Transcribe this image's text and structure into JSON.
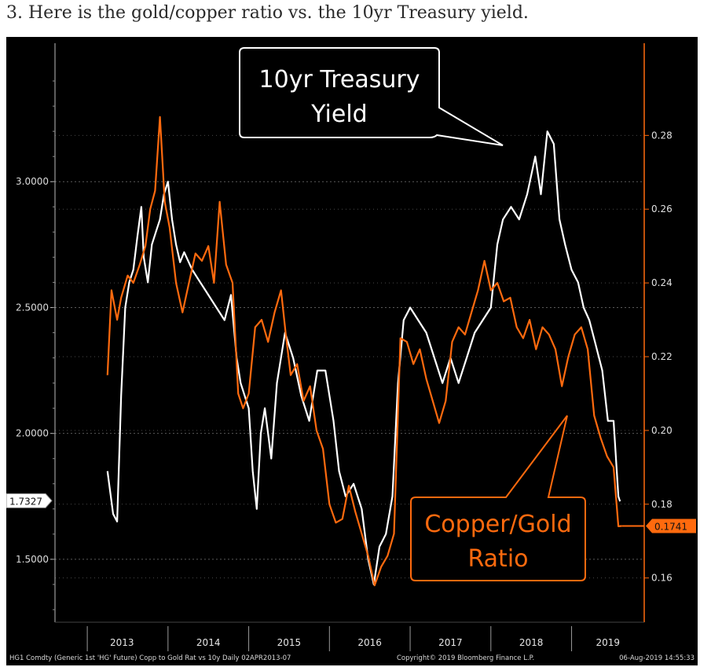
{
  "caption": "3. Here is the gold/copper ratio vs. the 10yr Treasury yield.",
  "chart_data": {
    "type": "line",
    "x_categories": [
      "2013",
      "2014",
      "2015",
      "2016",
      "2017",
      "2018",
      "2019"
    ],
    "left_axis": {
      "ticks": [
        {
          "value": 3.0,
          "label": "3.0000"
        },
        {
          "value": 2.5,
          "label": "2.5000"
        },
        {
          "value": 2.0,
          "label": "2.0000"
        },
        {
          "value": 1.5,
          "label": "1.5000"
        }
      ],
      "range": [
        1.25,
        3.55
      ],
      "last_value": 1.7327,
      "last_label": "1.7327"
    },
    "right_axis": {
      "ticks": [
        {
          "value": 0.28,
          "label": "0.28"
        },
        {
          "value": 0.26,
          "label": "0.26"
        },
        {
          "value": 0.24,
          "label": "0.24"
        },
        {
          "value": 0.22,
          "label": "0.22"
        },
        {
          "value": 0.2,
          "label": "0.20"
        },
        {
          "value": 0.18,
          "label": "0.18"
        },
        {
          "value": 0.16,
          "label": "0.16"
        }
      ],
      "range": [
        0.148,
        0.305
      ],
      "last_value": 0.1741,
      "last_label": "0.1741"
    },
    "series": [
      {
        "name": "10yr Treasury Yield",
        "axis": "left",
        "color": "#ffffff",
        "points": [
          [
            2013.25,
            1.85
          ],
          [
            2013.32,
            1.68
          ],
          [
            2013.37,
            1.65
          ],
          [
            2013.42,
            2.15
          ],
          [
            2013.47,
            2.5
          ],
          [
            2013.52,
            2.6
          ],
          [
            2013.57,
            2.65
          ],
          [
            2013.62,
            2.78
          ],
          [
            2013.67,
            2.9
          ],
          [
            2013.7,
            2.7
          ],
          [
            2013.75,
            2.6
          ],
          [
            2013.8,
            2.75
          ],
          [
            2013.85,
            2.8
          ],
          [
            2013.9,
            2.85
          ],
          [
            2013.95,
            2.95
          ],
          [
            2014.0,
            3.0
          ],
          [
            2014.05,
            2.85
          ],
          [
            2014.1,
            2.75
          ],
          [
            2014.15,
            2.68
          ],
          [
            2014.2,
            2.72
          ],
          [
            2014.3,
            2.65
          ],
          [
            2014.4,
            2.6
          ],
          [
            2014.5,
            2.55
          ],
          [
            2014.6,
            2.5
          ],
          [
            2014.7,
            2.45
          ],
          [
            2014.78,
            2.55
          ],
          [
            2014.85,
            2.3
          ],
          [
            2014.9,
            2.2
          ],
          [
            2014.95,
            2.15
          ],
          [
            2015.0,
            2.1
          ],
          [
            2015.05,
            1.85
          ],
          [
            2015.1,
            1.7
          ],
          [
            2015.15,
            2.0
          ],
          [
            2015.2,
            2.1
          ],
          [
            2015.28,
            1.9
          ],
          [
            2015.35,
            2.2
          ],
          [
            2015.45,
            2.4
          ],
          [
            2015.55,
            2.3
          ],
          [
            2015.65,
            2.15
          ],
          [
            2015.75,
            2.05
          ],
          [
            2015.85,
            2.25
          ],
          [
            2015.95,
            2.25
          ],
          [
            2016.05,
            2.05
          ],
          [
            2016.12,
            1.85
          ],
          [
            2016.2,
            1.75
          ],
          [
            2016.3,
            1.8
          ],
          [
            2016.4,
            1.7
          ],
          [
            2016.48,
            1.5
          ],
          [
            2016.55,
            1.4
          ],
          [
            2016.62,
            1.55
          ],
          [
            2016.7,
            1.6
          ],
          [
            2016.78,
            1.75
          ],
          [
            2016.85,
            2.2
          ],
          [
            2016.92,
            2.45
          ],
          [
            2017.0,
            2.5
          ],
          [
            2017.1,
            2.45
          ],
          [
            2017.2,
            2.4
          ],
          [
            2017.3,
            2.3
          ],
          [
            2017.4,
            2.2
          ],
          [
            2017.5,
            2.3
          ],
          [
            2017.6,
            2.2
          ],
          [
            2017.7,
            2.3
          ],
          [
            2017.8,
            2.4
          ],
          [
            2017.9,
            2.45
          ],
          [
            2018.0,
            2.5
          ],
          [
            2018.08,
            2.75
          ],
          [
            2018.15,
            2.85
          ],
          [
            2018.25,
            2.9
          ],
          [
            2018.35,
            2.85
          ],
          [
            2018.45,
            2.95
          ],
          [
            2018.55,
            3.1
          ],
          [
            2018.62,
            2.95
          ],
          [
            2018.7,
            3.2
          ],
          [
            2018.78,
            3.15
          ],
          [
            2018.85,
            2.85
          ],
          [
            2018.92,
            2.75
          ],
          [
            2019.0,
            2.65
          ],
          [
            2019.08,
            2.6
          ],
          [
            2019.15,
            2.5
          ],
          [
            2019.22,
            2.45
          ],
          [
            2019.3,
            2.35
          ],
          [
            2019.38,
            2.25
          ],
          [
            2019.45,
            2.05
          ],
          [
            2019.52,
            2.05
          ],
          [
            2019.58,
            1.75
          ],
          [
            2019.6,
            1.73
          ]
        ]
      },
      {
        "name": "Copper/Gold Ratio",
        "axis": "right",
        "color": "#ff6a0e",
        "points": [
          [
            2013.25,
            0.215
          ],
          [
            2013.3,
            0.238
          ],
          [
            2013.37,
            0.23
          ],
          [
            2013.42,
            0.236
          ],
          [
            2013.5,
            0.242
          ],
          [
            2013.57,
            0.24
          ],
          [
            2013.65,
            0.245
          ],
          [
            2013.72,
            0.25
          ],
          [
            2013.78,
            0.26
          ],
          [
            2013.84,
            0.265
          ],
          [
            2013.9,
            0.285
          ],
          [
            2013.96,
            0.262
          ],
          [
            2014.02,
            0.255
          ],
          [
            2014.1,
            0.24
          ],
          [
            2014.18,
            0.232
          ],
          [
            2014.26,
            0.24
          ],
          [
            2014.34,
            0.248
          ],
          [
            2014.42,
            0.246
          ],
          [
            2014.5,
            0.25
          ],
          [
            2014.57,
            0.24
          ],
          [
            2014.64,
            0.262
          ],
          [
            2014.72,
            0.245
          ],
          [
            2014.8,
            0.24
          ],
          [
            2014.87,
            0.21
          ],
          [
            2014.93,
            0.206
          ],
          [
            2015.0,
            0.21
          ],
          [
            2015.08,
            0.228
          ],
          [
            2015.16,
            0.23
          ],
          [
            2015.24,
            0.224
          ],
          [
            2015.32,
            0.232
          ],
          [
            2015.4,
            0.238
          ],
          [
            2015.46,
            0.226
          ],
          [
            2015.52,
            0.215
          ],
          [
            2015.6,
            0.218
          ],
          [
            2015.68,
            0.208
          ],
          [
            2015.76,
            0.212
          ],
          [
            2015.84,
            0.2
          ],
          [
            2015.92,
            0.195
          ],
          [
            2016.0,
            0.18
          ],
          [
            2016.08,
            0.175
          ],
          [
            2016.16,
            0.176
          ],
          [
            2016.24,
            0.185
          ],
          [
            2016.32,
            0.178
          ],
          [
            2016.4,
            0.172
          ],
          [
            2016.48,
            0.166
          ],
          [
            2016.56,
            0.158
          ],
          [
            2016.64,
            0.163
          ],
          [
            2016.72,
            0.166
          ],
          [
            2016.8,
            0.172
          ],
          [
            2016.88,
            0.225
          ],
          [
            2016.96,
            0.224
          ],
          [
            2017.04,
            0.218
          ],
          [
            2017.12,
            0.222
          ],
          [
            2017.2,
            0.214
          ],
          [
            2017.28,
            0.208
          ],
          [
            2017.36,
            0.202
          ],
          [
            2017.44,
            0.208
          ],
          [
            2017.52,
            0.224
          ],
          [
            2017.6,
            0.228
          ],
          [
            2017.68,
            0.226
          ],
          [
            2017.76,
            0.232
          ],
          [
            2017.84,
            0.238
          ],
          [
            2017.92,
            0.246
          ],
          [
            2018.0,
            0.238
          ],
          [
            2018.08,
            0.24
          ],
          [
            2018.16,
            0.235
          ],
          [
            2018.24,
            0.236
          ],
          [
            2018.32,
            0.228
          ],
          [
            2018.4,
            0.225
          ],
          [
            2018.48,
            0.23
          ],
          [
            2018.56,
            0.222
          ],
          [
            2018.64,
            0.228
          ],
          [
            2018.72,
            0.226
          ],
          [
            2018.8,
            0.222
          ],
          [
            2018.88,
            0.212
          ],
          [
            2018.96,
            0.22
          ],
          [
            2019.04,
            0.226
          ],
          [
            2019.12,
            0.228
          ],
          [
            2019.2,
            0.222
          ],
          [
            2019.28,
            0.204
          ],
          [
            2019.36,
            0.198
          ],
          [
            2019.44,
            0.193
          ],
          [
            2019.52,
            0.19
          ],
          [
            2019.58,
            0.174
          ],
          [
            2019.62,
            0.1741
          ]
        ]
      }
    ],
    "annotations": [
      {
        "text_lines": [
          "10yr Treasury",
          "Yield"
        ],
        "series": "10yr Treasury Yield"
      },
      {
        "text_lines": [
          "Copper/Gold",
          "Ratio"
        ],
        "series": "Copper/Gold Ratio"
      }
    ],
    "footer_left": "HG1 Comdty (Generic 1st 'HG' Future) Copp to Gold Rat vs 10y  Daily 02APR2013-07",
    "footer_mid": "Copyright© 2019 Bloomberg Finance L.P.",
    "footer_right": "06-Aug-2019 14:55:33",
    "colors": {
      "background": "#000000",
      "yield": "#ffffff",
      "ratio": "#ff6a0e",
      "axis": "#bdbdbd"
    }
  }
}
